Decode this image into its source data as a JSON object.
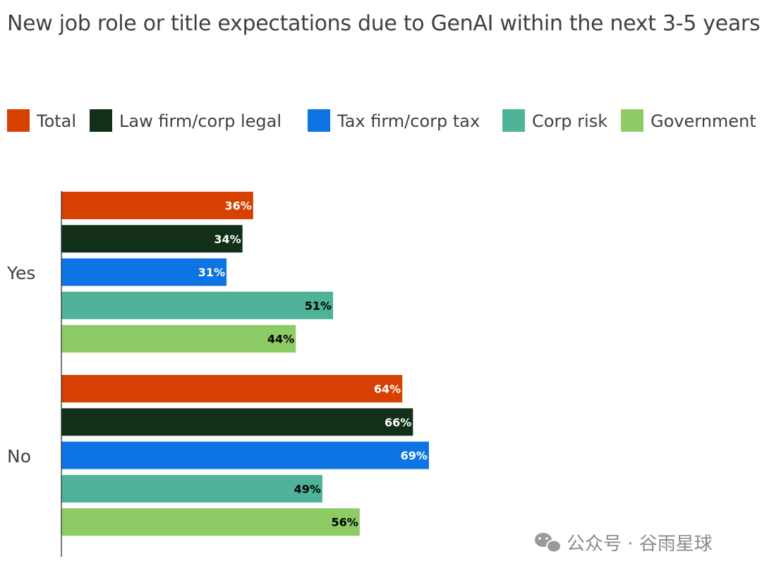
{
  "chart_data": {
    "type": "bar",
    "orientation": "horizontal",
    "title": "New job role or title expectations due to GenAI within the next 3-5 years",
    "categories": [
      "Yes",
      "No"
    ],
    "series": [
      {
        "name": "Total",
        "color": "#d64000",
        "label_color": "#ffffff",
        "values": [
          36,
          64
        ]
      },
      {
        "name": "Law firm/corp legal",
        "color": "#123018",
        "label_color": "#ffffff",
        "values": [
          34,
          66
        ]
      },
      {
        "name": "Tax firm/corp tax",
        "color": "#0e74e3",
        "label_color": "#ffffff",
        "values": [
          31,
          69
        ]
      },
      {
        "name": "Corp risk",
        "color": "#4fb39a",
        "label_color": "#000000",
        "values": [
          51,
          49
        ]
      },
      {
        "name": "Government",
        "color": "#8dcb65",
        "label_color": "#000000",
        "values": [
          44,
          56
        ]
      }
    ],
    "value_suffix": "%",
    "xlim": [
      0,
      100
    ],
    "grid": false,
    "legend_position": "top"
  },
  "watermark": {
    "text": "公众号 · 谷雨星球",
    "icon": "wechat-icon"
  }
}
